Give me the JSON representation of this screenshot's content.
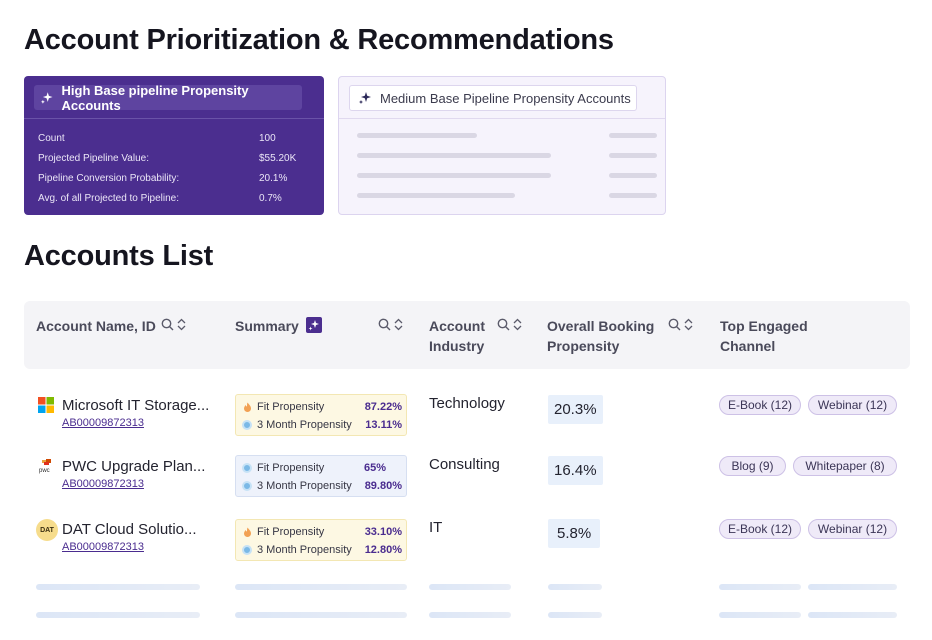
{
  "page": {
    "title": "Account Prioritization & Recommendations",
    "accounts_list_title": "Accounts List"
  },
  "cards": {
    "high": {
      "title": "High Base pipeline Propensity Accounts",
      "stats": [
        {
          "label": "Count",
          "value": "100"
        },
        {
          "label": "Projected Pipeline Value:",
          "value": "$55.20K"
        },
        {
          "label": "Pipeline Conversion Probability:",
          "value": "20.1%"
        },
        {
          "label": "Avg. of all Projected to Pipeline:",
          "value": "0.7%"
        }
      ]
    },
    "medium": {
      "title": "Medium Base Pipeline Propensity Accounts"
    }
  },
  "table": {
    "columns": {
      "account": "Account Name, ID",
      "summary": "Summary",
      "industry_l1": "Account",
      "industry_l2": "Industry",
      "booking_l1": "Overall Booking",
      "booking_l2": "Propensity",
      "channel_l1": "Top Engaged",
      "channel_l2": "Channel"
    },
    "rows": [
      {
        "name": "Microsoft IT Storage...",
        "id": "AB00009872313",
        "logo": "microsoft-logo",
        "summary": [
          {
            "label": "Fit Propensity",
            "value": "87.22%",
            "icon": "fire-icon"
          },
          {
            "label": "3 Month Propensity",
            "value": "13.11%",
            "icon": "calendar-icon"
          }
        ],
        "industry": "Technology",
        "booking": "20.3%",
        "channels": [
          "E-Book (12)",
          "Webinar (12)"
        ]
      },
      {
        "name": "PWC Upgrade Plan...",
        "id": "AB00009872313",
        "logo": "pwc-logo",
        "summary": [
          {
            "label": "Fit Propensity",
            "value": "65%",
            "icon": "calendar-icon"
          },
          {
            "label": "3 Month Propensity",
            "value": "89.80%",
            "icon": "calendar-icon"
          }
        ],
        "industry": "Consulting",
        "booking": "16.4%",
        "channels": [
          "Blog (9)",
          "Whitepaper (8)"
        ]
      },
      {
        "name": "DAT Cloud Solutio...",
        "id": "AB00009872313",
        "logo": "dat-logo",
        "logo_text": "DAT",
        "summary": [
          {
            "label": "Fit Propensity",
            "value": "33.10%",
            "icon": "fire-icon"
          },
          {
            "label": "3 Month Propensity",
            "value": "12.80%",
            "icon": "calendar-icon"
          }
        ],
        "industry": "IT",
        "booking": "5.8%",
        "channels": [
          "E-Book (12)",
          "Webinar (12)"
        ]
      }
    ]
  },
  "colors": {
    "brand_purple": "#4b2e8f",
    "link": "#4a2c8f"
  }
}
